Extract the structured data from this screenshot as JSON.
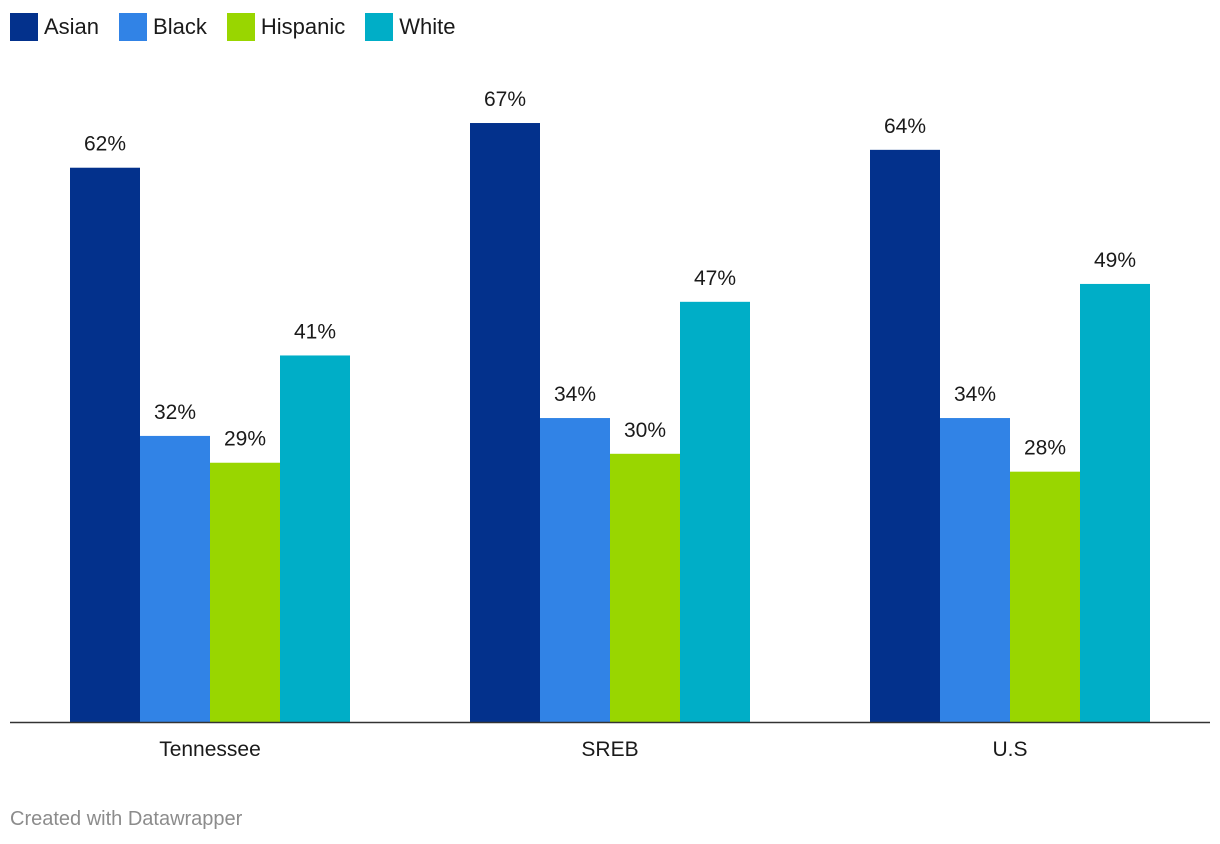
{
  "chart_data": {
    "type": "bar",
    "title": "",
    "xlabel": "",
    "ylabel": "",
    "ylim": [
      0,
      100
    ],
    "grid": false,
    "legend_position": "top-left",
    "value_suffix": "%",
    "categories": [
      "Tennessee",
      "SREB",
      "U.S"
    ],
    "series": [
      {
        "name": "Asian",
        "color": "#03318c",
        "values": [
          62,
          67,
          64
        ],
        "labels": [
          "62%",
          "67%",
          "64%"
        ]
      },
      {
        "name": "Black",
        "color": "#3183e6",
        "values": [
          32,
          34,
          34
        ],
        "labels": [
          "32%",
          "34%",
          "34%"
        ]
      },
      {
        "name": "Hispanic",
        "color": "#99d600",
        "values": [
          29,
          30,
          28
        ],
        "labels": [
          "29%",
          "30%",
          "28%"
        ]
      },
      {
        "name": "White",
        "color": "#00aec7",
        "values": [
          41,
          47,
          49
        ],
        "labels": [
          "41%",
          "47%",
          "49%"
        ]
      }
    ]
  },
  "footer": {
    "credit": "Created with Datawrapper"
  }
}
